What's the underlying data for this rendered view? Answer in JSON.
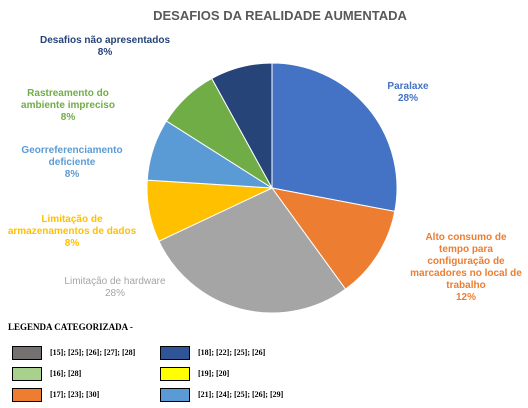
{
  "chart_data": {
    "type": "pie",
    "title": "DESAFIOS DA REALIDADE AUMENTADA",
    "categories": [
      "Paralaxe",
      "Alto consumo de tempo para configuração de marcadores no local de trabalho",
      "Limitação de hardware",
      "Limitação de armazenamentos de dados",
      "Georreferenciamento deficiente",
      "Rastreamento do ambiente impreciso",
      "Desafios não apresentados"
    ],
    "values": [
      28,
      12,
      28,
      8,
      8,
      8,
      8
    ],
    "value_labels": [
      "28%",
      "12%",
      "28%",
      "8%",
      "8%",
      "8%",
      "8%"
    ],
    "colors": [
      "#4472c4",
      "#ed7d31",
      "#a5a5a5",
      "#ffc000",
      "#5b9bd5",
      "#70ad47",
      "#264478"
    ]
  },
  "legend": {
    "title": "LEGENDA CATEGORIZADA -",
    "items": [
      {
        "label": "[15]; [25]; [26]; [27]; [28]",
        "color": "#767171"
      },
      {
        "label": "[18]; [22]; [25]; [26]",
        "color": "#2f5597"
      },
      {
        "label": "[16]; [28]",
        "color": "#a9d18e"
      },
      {
        "label": "[19]; [20]",
        "color": "#ffff00"
      },
      {
        "label": "[17]; [23]; [30]",
        "color": "#ed7d31"
      },
      {
        "label": "[21]; [24]; [25]; [26]; [29]",
        "color": "#5b9bd5"
      }
    ]
  }
}
